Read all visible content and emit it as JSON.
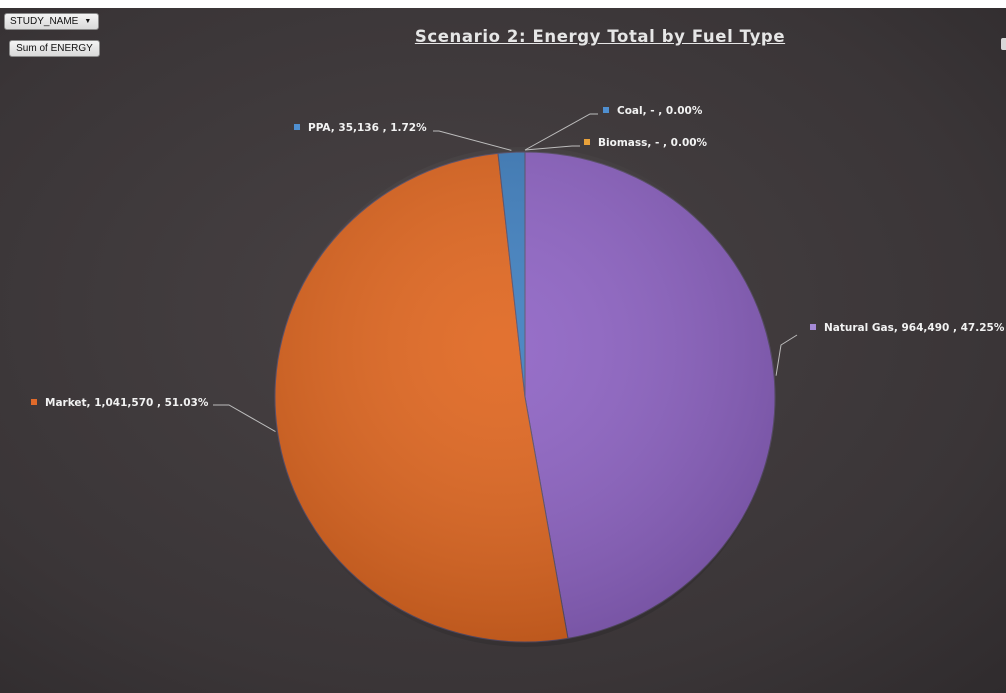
{
  "pivot": {
    "study_name": "STUDY_NAME",
    "sum_field": "Sum of ENERGY"
  },
  "chart_data": {
    "type": "pie",
    "title": "Scenario 2:  Energy Total by Fuel Type",
    "slices": [
      {
        "name": "Natural Gas",
        "value": 964490,
        "percent": 47.25,
        "label": "Natural Gas,  964,490 , 47.25%",
        "color": "#8e63c4",
        "legend_color": "#a58ad6"
      },
      {
        "name": "Market",
        "value": 1041570,
        "percent": 51.03,
        "label": "Market,  1,041,570 , 51.03%",
        "color": "#e0661f",
        "legend_color": "#e06a2a"
      },
      {
        "name": "PPA",
        "value": 35136,
        "percent": 1.72,
        "label": "PPA,  35,136 , 1.72%",
        "color": "#3f7fbf",
        "legend_color": "#4f8fd0"
      },
      {
        "name": "Coal",
        "value": 0,
        "percent": 0.0,
        "label": "Coal,  -  , 0.00%",
        "color": "#4f8fd0",
        "legend_color": "#4f8fd0"
      },
      {
        "name": "Biomass",
        "value": 0,
        "percent": 0.0,
        "label": "Biomass,  -  , 0.00%",
        "color": "#e8a13a",
        "legend_color": "#e8a13a"
      }
    ]
  }
}
